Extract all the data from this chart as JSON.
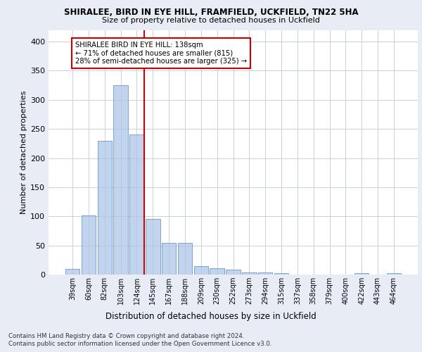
{
  "title1": "SHIRALEE, BIRD IN EYE HILL, FRAMFIELD, UCKFIELD, TN22 5HA",
  "title2": "Size of property relative to detached houses in Uckfield",
  "xlabel": "Distribution of detached houses by size in Uckfield",
  "ylabel": "Number of detached properties",
  "categories": [
    "39sqm",
    "60sqm",
    "82sqm",
    "103sqm",
    "124sqm",
    "145sqm",
    "167sqm",
    "188sqm",
    "209sqm",
    "230sqm",
    "252sqm",
    "273sqm",
    "294sqm",
    "315sqm",
    "337sqm",
    "358sqm",
    "379sqm",
    "400sqm",
    "422sqm",
    "443sqm",
    "464sqm"
  ],
  "values": [
    10,
    102,
    230,
    325,
    240,
    96,
    54,
    54,
    15,
    11,
    8,
    4,
    4,
    3,
    0,
    0,
    0,
    0,
    3,
    0,
    3
  ],
  "bar_color": "#aec6e8",
  "bar_edge_color": "#5b8fc9",
  "bar_alpha": 0.75,
  "vline_index": 4,
  "vline_color": "#cc0000",
  "annotation_text": "SHIRALEE BIRD IN EYE HILL: 138sqm\n← 71% of detached houses are smaller (815)\n28% of semi-detached houses are larger (325) →",
  "annotation_box_color": "#ffffff",
  "annotation_box_edge_color": "#cc0000",
  "ylim": [
    0,
    420
  ],
  "yticks": [
    0,
    50,
    100,
    150,
    200,
    250,
    300,
    350,
    400
  ],
  "footnote1": "Contains HM Land Registry data © Crown copyright and database right 2024.",
  "footnote2": "Contains public sector information licensed under the Open Government Licence v3.0.",
  "bg_color": "#e8edf5",
  "axes_bg_color": "#ffffff",
  "grid_color": "#c8d0dc"
}
